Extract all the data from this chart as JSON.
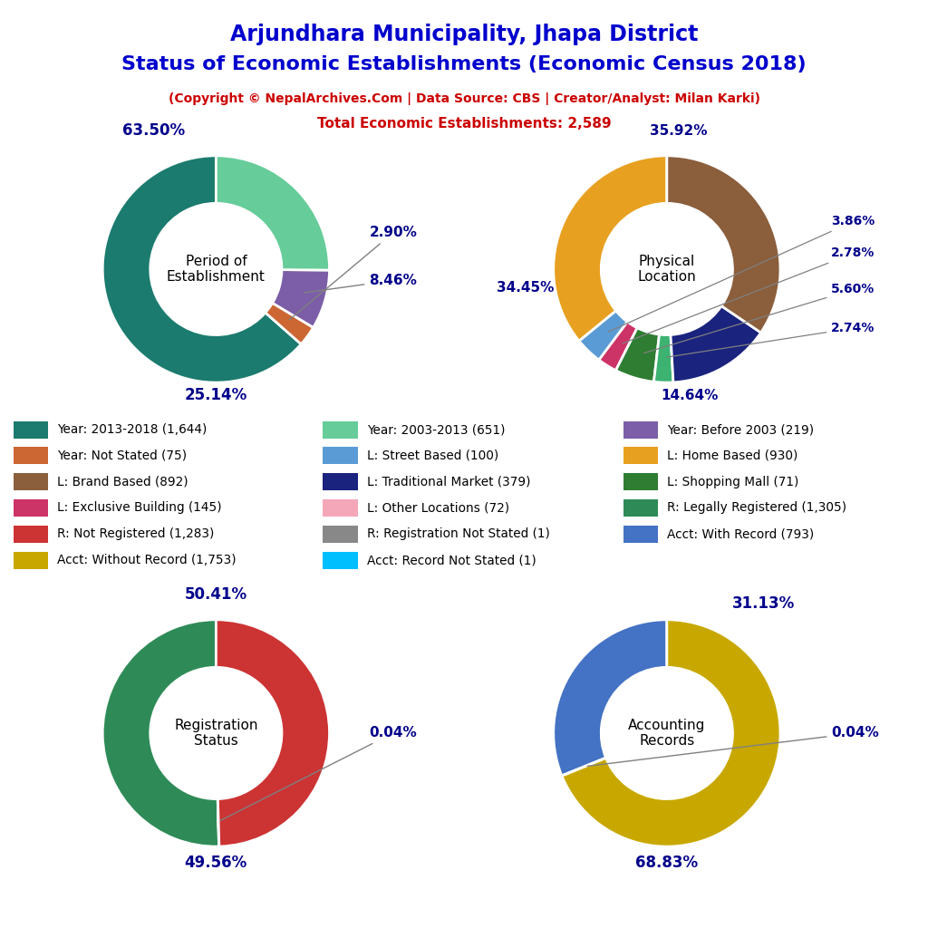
{
  "title_line1": "Arjundhara Municipality, Jhapa District",
  "title_line2": "Status of Economic Establishments (Economic Census 2018)",
  "subtitle": "(Copyright © NepalArchives.Com | Data Source: CBS | Creator/Analyst: Milan Karki)",
  "total_line": "Total Economic Establishments: 2,589",
  "title_color": "#0000CD",
  "subtitle_color": "#CC0000",
  "pct_color": "#00008B",
  "donut1_label": "Period of\nEstablishment",
  "donut1_values": [
    63.5,
    2.9,
    8.46,
    25.14
  ],
  "donut1_colors": [
    "#1B7B6E",
    "#CC6633",
    "#7B5EA7",
    "#66CC99"
  ],
  "donut1_pcts": [
    "63.50%",
    "2.90%",
    "8.46%",
    "25.14%"
  ],
  "donut2_label": "Physical\nLocation",
  "donut2_values": [
    35.92,
    3.86,
    2.78,
    5.6,
    2.74,
    14.64,
    34.45
  ],
  "donut2_colors": [
    "#E8A020",
    "#5B9BD5",
    "#CC3366",
    "#2E7D32",
    "#3CB371",
    "#1A237E",
    "#8B5E3C"
  ],
  "donut2_pcts": [
    "35.92%",
    "3.86%",
    "2.78%",
    "5.60%",
    "2.74%",
    "14.64%",
    "34.45%"
  ],
  "donut3_label": "Registration\nStatus",
  "donut3_values": [
    50.41,
    0.04,
    49.56
  ],
  "donut3_colors": [
    "#2E8B57",
    "#888888",
    "#CC3333"
  ],
  "donut3_pcts": [
    "50.41%",
    "0.04%",
    "49.56%"
  ],
  "donut4_label": "Accounting\nRecords",
  "donut4_values": [
    31.13,
    0.04,
    68.83
  ],
  "donut4_colors": [
    "#4472C4",
    "#00BFFF",
    "#C8A800"
  ],
  "donut4_pcts": [
    "31.13%",
    "0.04%",
    "68.83%"
  ],
  "legend_items": [
    {
      "label": "Year: 2013-2018 (1,644)",
      "color": "#1B7B6E"
    },
    {
      "label": "Year: Not Stated (75)",
      "color": "#CC6633"
    },
    {
      "label": "L: Brand Based (892)",
      "color": "#8B5E3C"
    },
    {
      "label": "L: Exclusive Building (145)",
      "color": "#CC3366"
    },
    {
      "label": "R: Not Registered (1,283)",
      "color": "#CC3333"
    },
    {
      "label": "Acct: Without Record (1,753)",
      "color": "#C8A800"
    },
    {
      "label": "Year: 2003-2013 (651)",
      "color": "#66CC99"
    },
    {
      "label": "L: Street Based (100)",
      "color": "#5B9BD5"
    },
    {
      "label": "L: Traditional Market (379)",
      "color": "#1A237E"
    },
    {
      "label": "L: Other Locations (72)",
      "color": "#F4A7B9"
    },
    {
      "label": "R: Registration Not Stated (1)",
      "color": "#888888"
    },
    {
      "label": "Acct: Record Not Stated (1)",
      "color": "#00BFFF"
    },
    {
      "label": "Year: Before 2003 (219)",
      "color": "#7B5EA7"
    },
    {
      "label": "L: Home Based (930)",
      "color": "#E8A020"
    },
    {
      "label": "L: Shopping Mall (71)",
      "color": "#2E7D32"
    },
    {
      "label": "R: Legally Registered (1,305)",
      "color": "#2E8B57"
    },
    {
      "label": "Acct: With Record (793)",
      "color": "#4472C4"
    }
  ]
}
